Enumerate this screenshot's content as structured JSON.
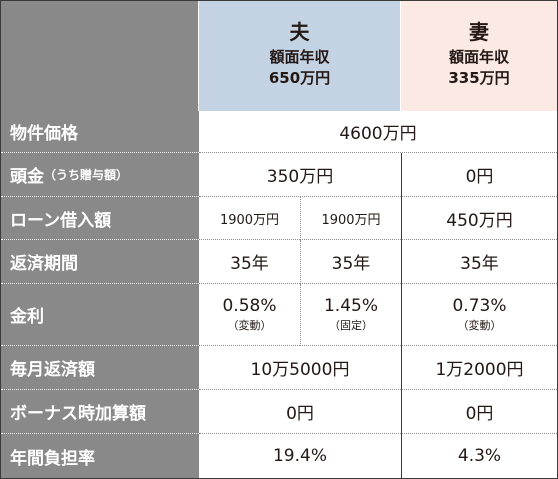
{
  "header": {
    "husband": {
      "title": "夫",
      "income_label": "額面年収",
      "income_value": "650万円"
    },
    "wife": {
      "title": "妻",
      "income_label": "額面年収",
      "income_value": "335万円"
    }
  },
  "rows": {
    "property_price": {
      "label": "物件価格",
      "value": "4600万円"
    },
    "down_payment": {
      "label": "頭金",
      "label_note": "（うち贈与額）",
      "husband": "350万円",
      "wife": "0円"
    },
    "loan_amount": {
      "label": "ローン借入額",
      "husband_1": "1900万円",
      "husband_2": "1900万円",
      "wife": "450万円"
    },
    "repayment_period": {
      "label": "返済期間",
      "husband_1": "35年",
      "husband_2": "35年",
      "wife": "35年"
    },
    "interest_rate": {
      "label": "金利",
      "husband_1": "0.58%",
      "husband_1_note": "（変動）",
      "husband_2": "1.45%",
      "husband_2_note": "（固定）",
      "wife": "0.73%",
      "wife_note": "（変動）"
    },
    "monthly_payment": {
      "label": "毎月返済額",
      "husband": "10万5000円",
      "wife": "1万2000円"
    },
    "bonus_payment": {
      "label": "ボーナス時加算額",
      "husband": "0円",
      "wife": "0円"
    },
    "annual_burden": {
      "label": "年間負担率",
      "husband": "19.4%",
      "wife": "4.3%"
    }
  }
}
